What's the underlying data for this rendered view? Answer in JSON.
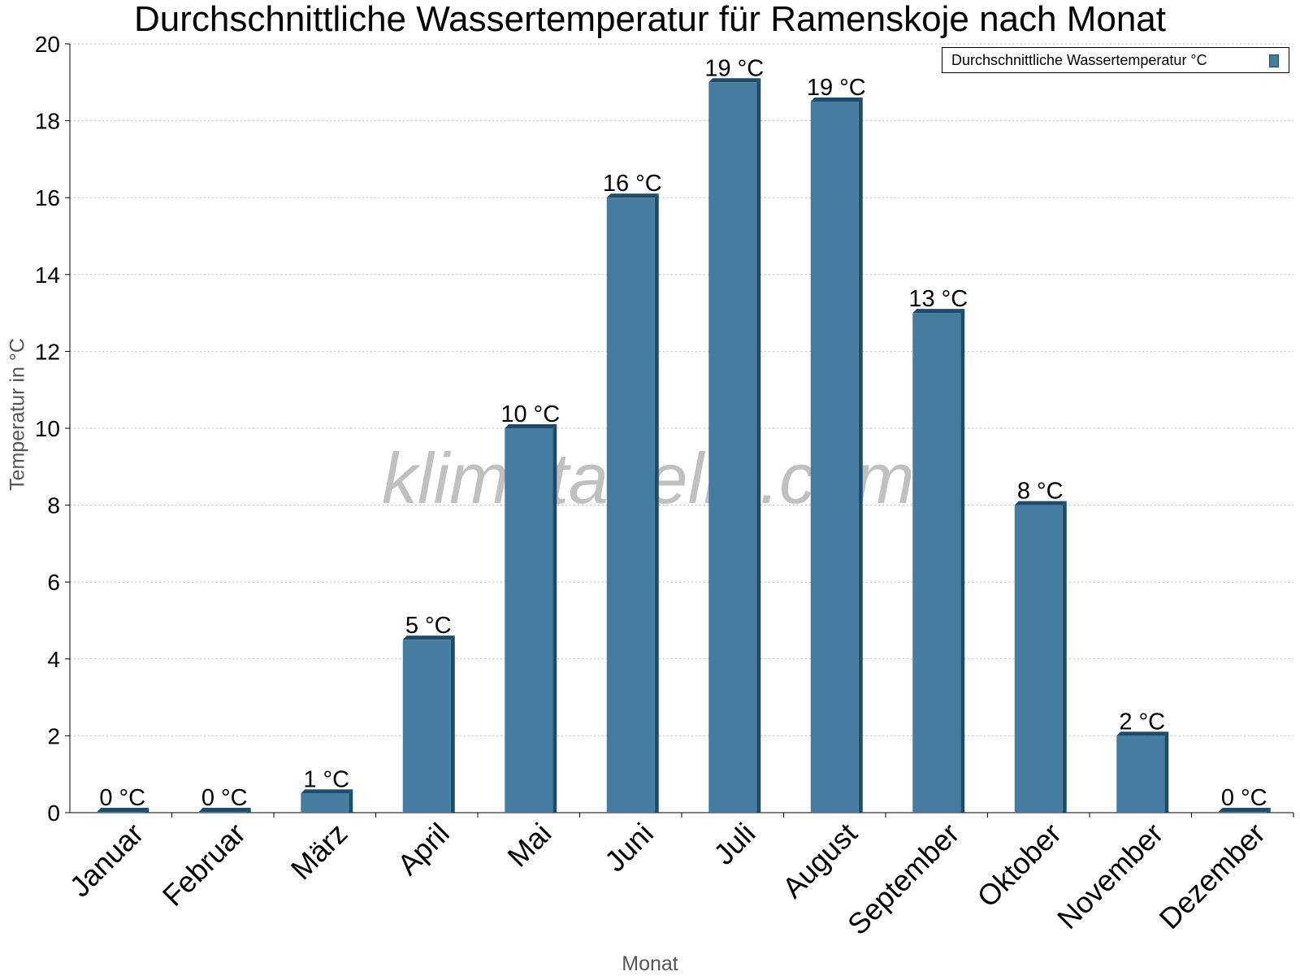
{
  "chart_data": {
    "type": "bar",
    "title": "Durchschnittliche Wassertemperatur für Ramenskoje nach Monat",
    "xlabel": "Monat",
    "ylabel": "Temperatur in °C",
    "categories": [
      "Januar",
      "Februar",
      "März",
      "April",
      "Mai",
      "Juni",
      "Juli",
      "August",
      "September",
      "Oktober",
      "November",
      "Dezember"
    ],
    "series": [
      {
        "name": "Durchschnittliche Wassertemperatur °C",
        "values": [
          0,
          0,
          0.5,
          4.5,
          10,
          16,
          19,
          18.5,
          13,
          8,
          2,
          0
        ],
        "labels": [
          "0 °C",
          "0 °C",
          "1 °C",
          "5 °C",
          "10 °C",
          "16 °C",
          "19 °C",
          "19 °C",
          "13 °C",
          "8 °C",
          "2 °C",
          "0 °C"
        ],
        "color": "#467c9f",
        "edge_color": "#1c4c6c"
      }
    ],
    "ylim": [
      0,
      20
    ],
    "yticks": [
      0,
      2,
      4,
      6,
      8,
      10,
      12,
      14,
      16,
      18,
      20
    ],
    "grid": true,
    "legend_position": "top-right"
  },
  "watermark": "klimatabelle.com"
}
